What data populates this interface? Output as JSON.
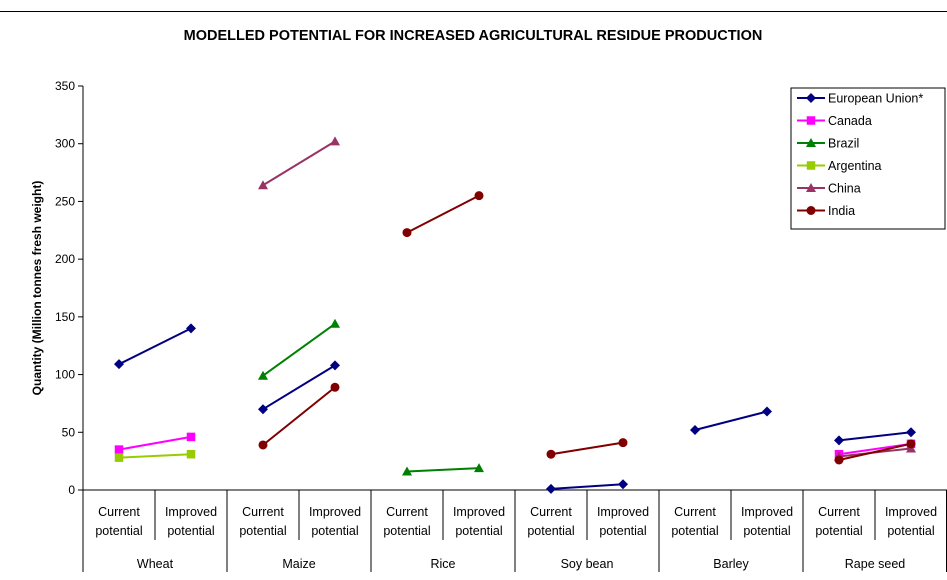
{
  "chart_data": {
    "type": "line",
    "title": "MODELLED POTENTIAL FOR INCREASED AGRICULTURAL RESIDUE PRODUCTION",
    "ylabel": "Quantity (Million tonnes fresh weight)",
    "xlabel": "",
    "ylim": [
      0,
      350
    ],
    "yticks": [
      0,
      50,
      100,
      150,
      200,
      250,
      300,
      350
    ],
    "groups": [
      "Wheat",
      "Maize",
      "Rice",
      "Soy bean",
      "Barley",
      "Rape seed"
    ],
    "subcategories": [
      [
        "Current",
        "potential"
      ],
      [
        "Improved",
        "potential"
      ]
    ],
    "legend_position": "top-right",
    "grid": false,
    "series": [
      {
        "name": "European Union*",
        "color": "#000080",
        "marker": "diamond",
        "values": [
          [
            109,
            140
          ],
          [
            70,
            108
          ],
          [
            null,
            null
          ],
          [
            1,
            5
          ],
          [
            52,
            68
          ],
          [
            43,
            50
          ]
        ]
      },
      {
        "name": "Canada",
        "color": "#ff00ff",
        "marker": "square",
        "values": [
          [
            35,
            46
          ],
          [
            null,
            null
          ],
          [
            null,
            null
          ],
          [
            null,
            null
          ],
          [
            null,
            null
          ],
          [
            31,
            40
          ]
        ]
      },
      {
        "name": "Brazil",
        "color": "#008000",
        "marker": "triangle",
        "values": [
          [
            null,
            null
          ],
          [
            99,
            144
          ],
          [
            16,
            19
          ],
          [
            null,
            null
          ],
          [
            null,
            null
          ],
          [
            null,
            null
          ]
        ]
      },
      {
        "name": "Argentina",
        "color": "#99cc00",
        "marker": "square",
        "values": [
          [
            28,
            31
          ],
          [
            null,
            null
          ],
          [
            null,
            null
          ],
          [
            null,
            null
          ],
          [
            null,
            null
          ],
          [
            null,
            null
          ]
        ]
      },
      {
        "name": "China",
        "color": "#993366",
        "marker": "triangle",
        "values": [
          [
            null,
            null
          ],
          [
            264,
            302
          ],
          [
            null,
            null
          ],
          [
            null,
            null
          ],
          [
            null,
            null
          ],
          [
            29,
            36
          ]
        ]
      },
      {
        "name": "India",
        "color": "#800000",
        "marker": "circle",
        "values": [
          [
            null,
            null
          ],
          [
            39,
            89
          ],
          [
            223,
            255
          ],
          [
            31,
            41
          ],
          [
            null,
            null
          ],
          [
            26,
            40
          ]
        ]
      }
    ]
  }
}
